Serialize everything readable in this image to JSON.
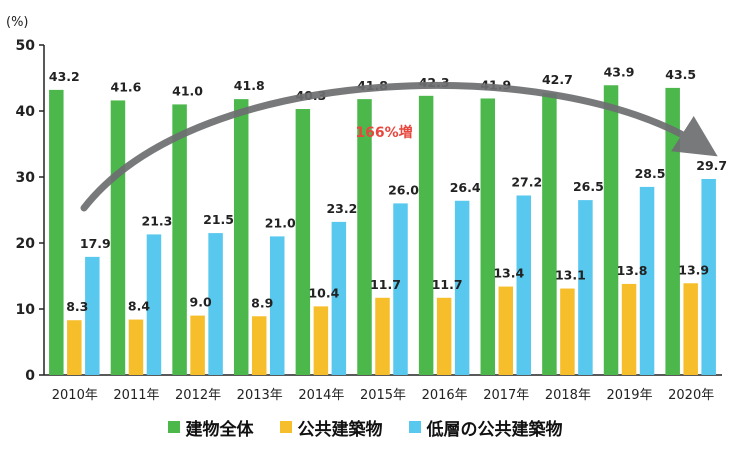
{
  "chart_data": {
    "type": "bar",
    "unit_label": "(%)",
    "categories": [
      "2010年",
      "2011年",
      "2012年",
      "2013年",
      "2014年",
      "2015年",
      "2016年",
      "2017年",
      "2018年",
      "2019年",
      "2020年"
    ],
    "ylim": [
      0,
      50
    ],
    "yticks": [
      0,
      10,
      20,
      30,
      40,
      50
    ],
    "series": [
      {
        "name": "建物全体",
        "color": "#4cb84c",
        "values": [
          43.2,
          41.6,
          41.0,
          41.8,
          40.3,
          41.8,
          42.3,
          41.9,
          42.7,
          43.9,
          43.5
        ],
        "labels": [
          "43.2",
          "41.6",
          "41.0",
          "41.8",
          "40.3",
          "41.8",
          "42.3",
          "41.9",
          "42.7",
          "43.9",
          "43.5"
        ]
      },
      {
        "name": "公共建築物",
        "color": "#f6be2a",
        "values": [
          8.3,
          8.4,
          9.0,
          8.9,
          10.4,
          11.7,
          11.7,
          13.4,
          13.1,
          13.8,
          13.9
        ],
        "labels": [
          "8.3",
          "8.4",
          "9.0",
          "8.9",
          "10.4",
          "11.7",
          "11.7",
          "13.4",
          "13.1",
          "13.8",
          "13.9"
        ]
      },
      {
        "name": "低層の公共建築物",
        "color": "#58c8ef",
        "values": [
          17.9,
          21.3,
          21.5,
          21.0,
          23.2,
          26.0,
          26.4,
          27.2,
          26.5,
          28.5,
          29.7
        ],
        "labels": [
          "17.9",
          "21.3",
          "21.5",
          "21.0",
          "23.2",
          "26.0",
          "26.4",
          "27.2",
          "26.5",
          "28.5",
          "29.7"
        ]
      }
    ],
    "annotation": {
      "text": "166%増",
      "color": "#e8473f"
    },
    "arrow_color": "#6d6e70",
    "axis_color": "#222222"
  }
}
